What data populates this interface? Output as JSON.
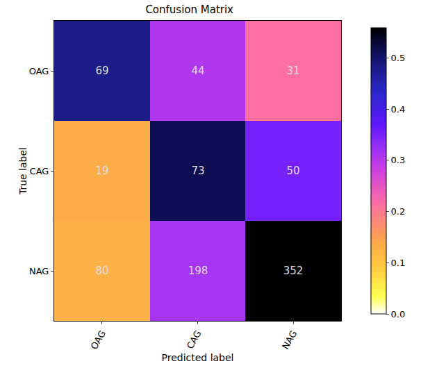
{
  "chart_data": {
    "type": "heatmap",
    "title": "Confusion Matrix",
    "x_label": "Predicted label",
    "y_label": "True label",
    "x_categories": [
      "OAG",
      "CAG",
      "NAG"
    ],
    "y_categories": [
      "OAG",
      "CAG",
      "NAG"
    ],
    "values": [
      [
        69,
        44,
        31
      ],
      [
        19,
        73,
        50
      ],
      [
        80,
        198,
        352
      ]
    ],
    "cells": [
      [
        0.479,
        0.306,
        0.215
      ],
      [
        0.134,
        0.514,
        0.352
      ],
      [
        0.127,
        0.314,
        0.559
      ]
    ],
    "data_labels": true,
    "color_range": [
      0,
      0.559
    ],
    "color_ticks": [
      {
        "value": 0,
        "label": "0.0"
      },
      0.1,
      0.2,
      0.3,
      0.4,
      0.5
    ]
  }
}
